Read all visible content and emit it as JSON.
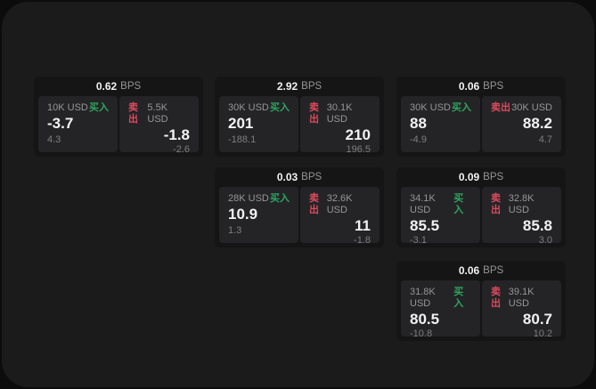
{
  "theme": {
    "page_bg": "#0c0c0d",
    "panel_bg": "#1b1b1c",
    "card_bg": "#151516",
    "tile_bg": "#242427",
    "text_primary": "#f2f2f2",
    "text_muted": "#969697",
    "text_dim": "#7e7e80",
    "buy_green": "#2EA55E",
    "sell_red": "#DC4A5E"
  },
  "labels": {
    "bps_unit": "BPS",
    "buy": "买入",
    "sell": "卖出"
  },
  "cards": [
    {
      "row": 1,
      "col": 1,
      "bps": "0.62",
      "buy": {
        "amount": "10K USD",
        "value": "-3.7",
        "delta": "4.3"
      },
      "sell": {
        "amount": "5.5K USD",
        "value": "-1.8",
        "delta": "-2.6"
      }
    },
    {
      "row": 1,
      "col": 2,
      "bps": "2.92",
      "buy": {
        "amount": "30K USD",
        "value": "201",
        "delta": "-188.1"
      },
      "sell": {
        "amount": "30.1K USD",
        "value": "210",
        "delta": "196.5"
      }
    },
    {
      "row": 1,
      "col": 3,
      "bps": "0.06",
      "buy": {
        "amount": "30K USD",
        "value": "88",
        "delta": "-4.9"
      },
      "sell": {
        "amount": "30K USD",
        "value": "88.2",
        "delta": "4.7"
      }
    },
    {
      "row": 2,
      "col": 2,
      "bps": "0.03",
      "buy": {
        "amount": "28K USD",
        "value": "10.9",
        "delta": "1.3"
      },
      "sell": {
        "amount": "32.6K USD",
        "value": "11",
        "delta": "-1.8"
      }
    },
    {
      "row": 2,
      "col": 3,
      "bps": "0.09",
      "buy": {
        "amount": "34.1K USD",
        "value": "85.5",
        "delta": "-3.1"
      },
      "sell": {
        "amount": "32.8K USD",
        "value": "85.8",
        "delta": "3.0"
      }
    },
    {
      "row": 3,
      "col": 3,
      "bps": "0.06",
      "buy": {
        "amount": "31.8K USD",
        "value": "80.5",
        "delta": "-10.8"
      },
      "sell": {
        "amount": "39.1K USD",
        "value": "80.7",
        "delta": "10.2"
      }
    }
  ]
}
